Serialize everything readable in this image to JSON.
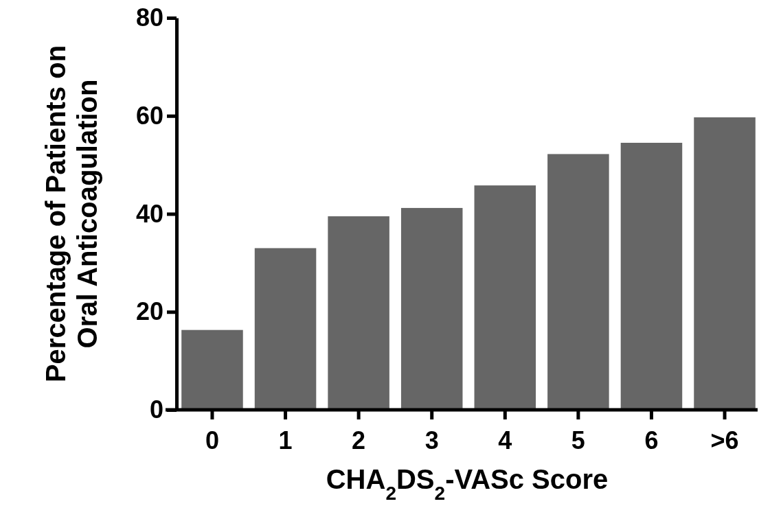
{
  "chart_data": {
    "type": "bar",
    "xlabel": "CHA$_{2}$DS$_{2}$-VASc Score",
    "ylabel": "Percentage of Patients on Oral Anticoagulation",
    "categories": [
      "0",
      "1",
      "2",
      "3",
      "4",
      "5",
      "6",
      ">6"
    ],
    "values": [
      16.3,
      33.0,
      39.5,
      41.2,
      45.8,
      52.2,
      54.5,
      59.7
    ],
    "color": "#666666",
    "ylim": [
      0,
      80
    ],
    "yticks": [
      0,
      20,
      40,
      60,
      80
    ],
    "grid": false
  }
}
